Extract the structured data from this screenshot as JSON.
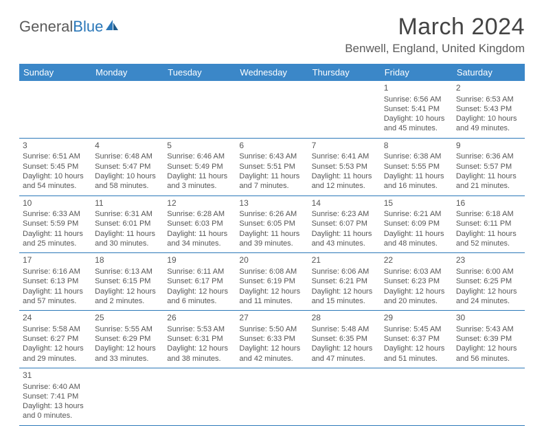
{
  "logo": {
    "text1": "General",
    "text2": "Blue"
  },
  "title": "March 2024",
  "location": "Benwell, England, United Kingdom",
  "colors": {
    "header_bg": "#3b87c8",
    "border": "#2a77b8",
    "text": "#555555",
    "title": "#444444"
  },
  "weekdays": [
    "Sunday",
    "Monday",
    "Tuesday",
    "Wednesday",
    "Thursday",
    "Friday",
    "Saturday"
  ],
  "weeks": [
    [
      null,
      null,
      null,
      null,
      null,
      {
        "n": "1",
        "sr": "Sunrise: 6:56 AM",
        "ss": "Sunset: 5:41 PM",
        "d1": "Daylight: 10 hours",
        "d2": "and 45 minutes."
      },
      {
        "n": "2",
        "sr": "Sunrise: 6:53 AM",
        "ss": "Sunset: 5:43 PM",
        "d1": "Daylight: 10 hours",
        "d2": "and 49 minutes."
      }
    ],
    [
      {
        "n": "3",
        "sr": "Sunrise: 6:51 AM",
        "ss": "Sunset: 5:45 PM",
        "d1": "Daylight: 10 hours",
        "d2": "and 54 minutes."
      },
      {
        "n": "4",
        "sr": "Sunrise: 6:48 AM",
        "ss": "Sunset: 5:47 PM",
        "d1": "Daylight: 10 hours",
        "d2": "and 58 minutes."
      },
      {
        "n": "5",
        "sr": "Sunrise: 6:46 AM",
        "ss": "Sunset: 5:49 PM",
        "d1": "Daylight: 11 hours",
        "d2": "and 3 minutes."
      },
      {
        "n": "6",
        "sr": "Sunrise: 6:43 AM",
        "ss": "Sunset: 5:51 PM",
        "d1": "Daylight: 11 hours",
        "d2": "and 7 minutes."
      },
      {
        "n": "7",
        "sr": "Sunrise: 6:41 AM",
        "ss": "Sunset: 5:53 PM",
        "d1": "Daylight: 11 hours",
        "d2": "and 12 minutes."
      },
      {
        "n": "8",
        "sr": "Sunrise: 6:38 AM",
        "ss": "Sunset: 5:55 PM",
        "d1": "Daylight: 11 hours",
        "d2": "and 16 minutes."
      },
      {
        "n": "9",
        "sr": "Sunrise: 6:36 AM",
        "ss": "Sunset: 5:57 PM",
        "d1": "Daylight: 11 hours",
        "d2": "and 21 minutes."
      }
    ],
    [
      {
        "n": "10",
        "sr": "Sunrise: 6:33 AM",
        "ss": "Sunset: 5:59 PM",
        "d1": "Daylight: 11 hours",
        "d2": "and 25 minutes."
      },
      {
        "n": "11",
        "sr": "Sunrise: 6:31 AM",
        "ss": "Sunset: 6:01 PM",
        "d1": "Daylight: 11 hours",
        "d2": "and 30 minutes."
      },
      {
        "n": "12",
        "sr": "Sunrise: 6:28 AM",
        "ss": "Sunset: 6:03 PM",
        "d1": "Daylight: 11 hours",
        "d2": "and 34 minutes."
      },
      {
        "n": "13",
        "sr": "Sunrise: 6:26 AM",
        "ss": "Sunset: 6:05 PM",
        "d1": "Daylight: 11 hours",
        "d2": "and 39 minutes."
      },
      {
        "n": "14",
        "sr": "Sunrise: 6:23 AM",
        "ss": "Sunset: 6:07 PM",
        "d1": "Daylight: 11 hours",
        "d2": "and 43 minutes."
      },
      {
        "n": "15",
        "sr": "Sunrise: 6:21 AM",
        "ss": "Sunset: 6:09 PM",
        "d1": "Daylight: 11 hours",
        "d2": "and 48 minutes."
      },
      {
        "n": "16",
        "sr": "Sunrise: 6:18 AM",
        "ss": "Sunset: 6:11 PM",
        "d1": "Daylight: 11 hours",
        "d2": "and 52 minutes."
      }
    ],
    [
      {
        "n": "17",
        "sr": "Sunrise: 6:16 AM",
        "ss": "Sunset: 6:13 PM",
        "d1": "Daylight: 11 hours",
        "d2": "and 57 minutes."
      },
      {
        "n": "18",
        "sr": "Sunrise: 6:13 AM",
        "ss": "Sunset: 6:15 PM",
        "d1": "Daylight: 12 hours",
        "d2": "and 2 minutes."
      },
      {
        "n": "19",
        "sr": "Sunrise: 6:11 AM",
        "ss": "Sunset: 6:17 PM",
        "d1": "Daylight: 12 hours",
        "d2": "and 6 minutes."
      },
      {
        "n": "20",
        "sr": "Sunrise: 6:08 AM",
        "ss": "Sunset: 6:19 PM",
        "d1": "Daylight: 12 hours",
        "d2": "and 11 minutes."
      },
      {
        "n": "21",
        "sr": "Sunrise: 6:06 AM",
        "ss": "Sunset: 6:21 PM",
        "d1": "Daylight: 12 hours",
        "d2": "and 15 minutes."
      },
      {
        "n": "22",
        "sr": "Sunrise: 6:03 AM",
        "ss": "Sunset: 6:23 PM",
        "d1": "Daylight: 12 hours",
        "d2": "and 20 minutes."
      },
      {
        "n": "23",
        "sr": "Sunrise: 6:00 AM",
        "ss": "Sunset: 6:25 PM",
        "d1": "Daylight: 12 hours",
        "d2": "and 24 minutes."
      }
    ],
    [
      {
        "n": "24",
        "sr": "Sunrise: 5:58 AM",
        "ss": "Sunset: 6:27 PM",
        "d1": "Daylight: 12 hours",
        "d2": "and 29 minutes."
      },
      {
        "n": "25",
        "sr": "Sunrise: 5:55 AM",
        "ss": "Sunset: 6:29 PM",
        "d1": "Daylight: 12 hours",
        "d2": "and 33 minutes."
      },
      {
        "n": "26",
        "sr": "Sunrise: 5:53 AM",
        "ss": "Sunset: 6:31 PM",
        "d1": "Daylight: 12 hours",
        "d2": "and 38 minutes."
      },
      {
        "n": "27",
        "sr": "Sunrise: 5:50 AM",
        "ss": "Sunset: 6:33 PM",
        "d1": "Daylight: 12 hours",
        "d2": "and 42 minutes."
      },
      {
        "n": "28",
        "sr": "Sunrise: 5:48 AM",
        "ss": "Sunset: 6:35 PM",
        "d1": "Daylight: 12 hours",
        "d2": "and 47 minutes."
      },
      {
        "n": "29",
        "sr": "Sunrise: 5:45 AM",
        "ss": "Sunset: 6:37 PM",
        "d1": "Daylight: 12 hours",
        "d2": "and 51 minutes."
      },
      {
        "n": "30",
        "sr": "Sunrise: 5:43 AM",
        "ss": "Sunset: 6:39 PM",
        "d1": "Daylight: 12 hours",
        "d2": "and 56 minutes."
      }
    ],
    [
      {
        "n": "31",
        "sr": "Sunrise: 6:40 AM",
        "ss": "Sunset: 7:41 PM",
        "d1": "Daylight: 13 hours",
        "d2": "and 0 minutes."
      },
      null,
      null,
      null,
      null,
      null,
      null
    ]
  ]
}
